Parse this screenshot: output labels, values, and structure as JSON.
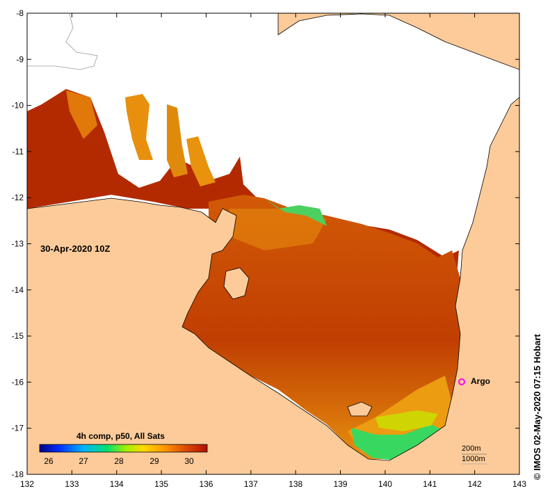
{
  "map": {
    "date_label": "30-Apr-2020 10Z",
    "credit": "© IMOS 02-May-2020 07:15 Hobart",
    "x_ticks": [
      "132",
      "133",
      "134",
      "135",
      "136",
      "137",
      "138",
      "139",
      "140",
      "141",
      "142",
      "143"
    ],
    "y_ticks": [
      "-8",
      "-9",
      "-10",
      "-11",
      "-12",
      "-13",
      "-14",
      "-15",
      "-16",
      "-17",
      "-18"
    ],
    "argo_label": "Argo",
    "depth_contours": [
      "200m",
      "1000m"
    ]
  },
  "legend": {
    "title": "4h comp, p50, All Sats",
    "ticks": [
      "26",
      "27",
      "28",
      "29",
      "30"
    ]
  },
  "colors": {
    "land": "#fccb99",
    "ocean_nodata": "#ffffff",
    "sst_hot": "#b32a00",
    "sst_warm": "#d25a06",
    "sst_mid": "#e88a0c",
    "sst_cool": "#38d860",
    "argo": "#ff00ff"
  }
}
